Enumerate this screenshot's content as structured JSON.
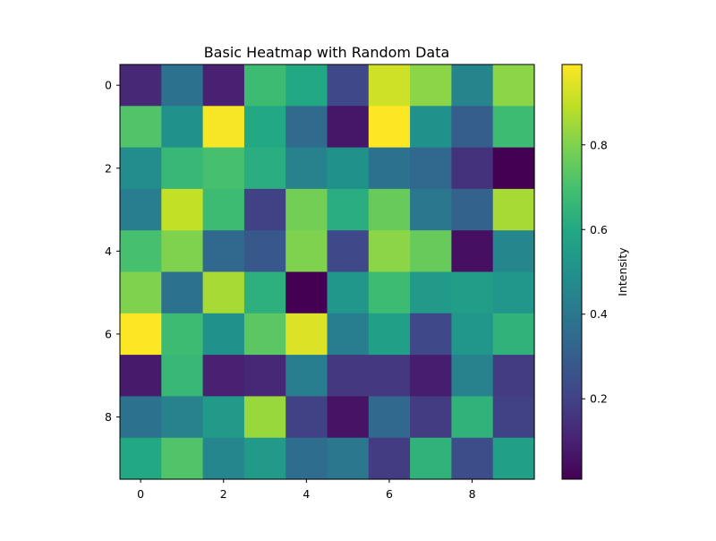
{
  "chart_data": {
    "type": "heatmap",
    "title": "Basic Heatmap with Random Data",
    "xlabel": "",
    "ylabel": "",
    "colormap": "viridis",
    "rows": 10,
    "cols": 10,
    "x_ticks": [
      "0",
      "2",
      "4",
      "6",
      "8"
    ],
    "y_ticks": [
      "0",
      "2",
      "4",
      "6",
      "8"
    ],
    "values": [
      [
        0.12,
        0.38,
        0.1,
        0.68,
        0.6,
        0.22,
        0.92,
        0.82,
        0.45,
        0.82
      ],
      [
        0.72,
        0.5,
        0.98,
        0.6,
        0.35,
        0.07,
        0.99,
        0.5,
        0.3,
        0.68
      ],
      [
        0.48,
        0.66,
        0.7,
        0.62,
        0.44,
        0.5,
        0.38,
        0.34,
        0.15,
        0.01
      ],
      [
        0.42,
        0.9,
        0.68,
        0.2,
        0.78,
        0.62,
        0.76,
        0.4,
        0.32,
        0.86
      ],
      [
        0.7,
        0.8,
        0.34,
        0.28,
        0.8,
        0.22,
        0.82,
        0.76,
        0.05,
        0.46
      ],
      [
        0.8,
        0.38,
        0.86,
        0.63,
        0.01,
        0.52,
        0.68,
        0.54,
        0.55,
        0.52
      ],
      [
        0.99,
        0.68,
        0.5,
        0.74,
        0.94,
        0.42,
        0.56,
        0.22,
        0.52,
        0.64
      ],
      [
        0.08,
        0.66,
        0.1,
        0.12,
        0.42,
        0.17,
        0.17,
        0.09,
        0.44,
        0.18
      ],
      [
        0.38,
        0.44,
        0.54,
        0.84,
        0.2,
        0.06,
        0.34,
        0.18,
        0.64,
        0.2
      ],
      [
        0.6,
        0.72,
        0.46,
        0.54,
        0.36,
        0.4,
        0.18,
        0.64,
        0.24,
        0.56
      ]
    ],
    "vmin": 0.01,
    "vmax": 0.99,
    "colorbar": {
      "label": "Intensity",
      "ticks": [
        {
          "value": 0.2,
          "label": "0.2"
        },
        {
          "value": 0.4,
          "label": "0.4"
        },
        {
          "value": 0.6,
          "label": "0.6"
        },
        {
          "value": 0.8,
          "label": "0.8"
        }
      ]
    }
  }
}
